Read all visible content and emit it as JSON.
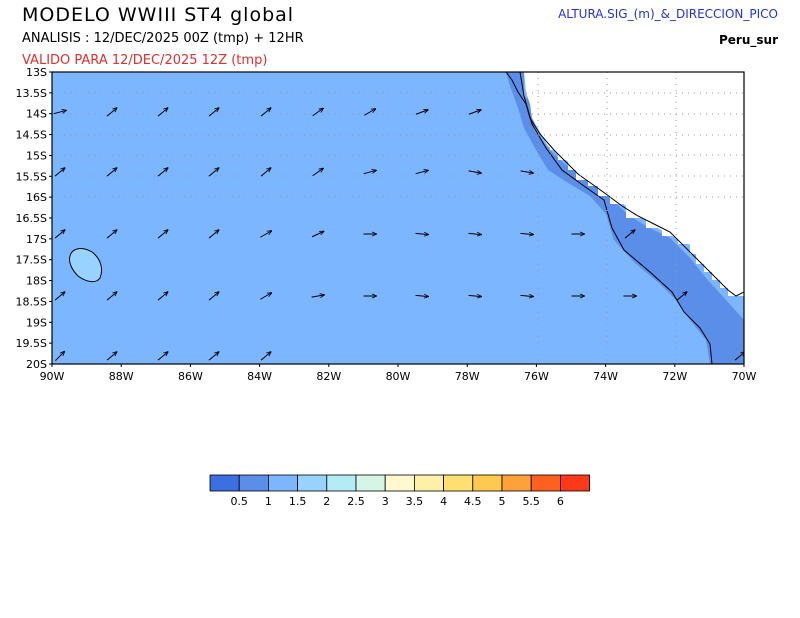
{
  "header": {
    "title": "MODELO WWIII ST4 global",
    "analysis": "ANALISIS : 12/DEC/2025 00Z  (tmp) + 12HR",
    "valid": "VALIDO PARA  12/DEC/2025 12Z  (tmp)",
    "product": "ALTURA.SIG_(m)_&_DIRECCION_PICO",
    "region": "Peru_sur"
  },
  "map": {
    "lat_labels": [
      "13S",
      "13.5S",
      "14S",
      "14.5S",
      "15S",
      "15.5S",
      "16S",
      "16.5S",
      "17S",
      "17.5S",
      "18S",
      "18.5S",
      "19S",
      "19.5S",
      "20S"
    ],
    "lon_labels": [
      "90W",
      "88W",
      "86W",
      "84W",
      "82W",
      "80W",
      "78W",
      "76W",
      "74W",
      "72W",
      "70W"
    ],
    "lon_range": [
      -90,
      -70
    ],
    "lat_range": [
      -20,
      -13
    ],
    "land_color": "#ffffff",
    "ocean_color": "#7bb6ff",
    "coastal_color": "#5a8ee8"
  },
  "colorbar": {
    "colors": [
      "#3c6fe0",
      "#5a8ee8",
      "#7bb6ff",
      "#98d2ff",
      "#b4ecf6",
      "#d6f5e6",
      "#fff8d0",
      "#fff0a8",
      "#ffe070",
      "#ffc850",
      "#ffa038",
      "#ff6020",
      "#ff3818"
    ],
    "labels": [
      "0.5",
      "1",
      "1.5",
      "2",
      "2.5",
      "3",
      "3.5",
      "4",
      "4.5",
      "5",
      "5.5",
      "6"
    ]
  }
}
